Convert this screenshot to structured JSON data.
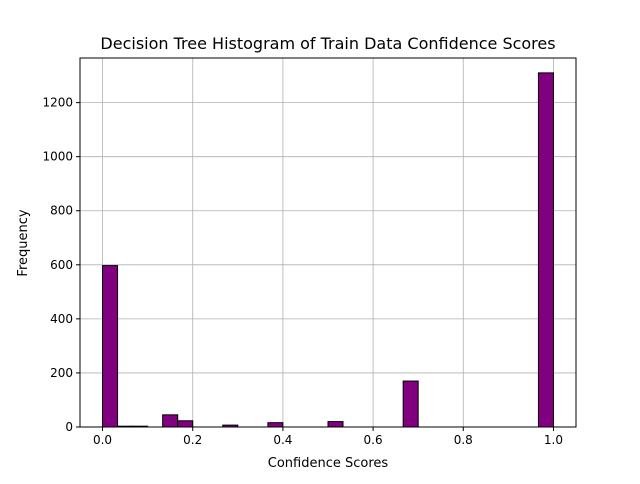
{
  "chart_data": {
    "type": "bar",
    "title": "Decision Tree Histogram of Train Data Confidence Scores",
    "xlabel": "Confidence Scores",
    "ylabel": "Frequency",
    "xlim": [
      -0.05,
      1.05
    ],
    "ylim": [
      0,
      1365
    ],
    "xticks": [
      0.0,
      0.2,
      0.4,
      0.6,
      0.8,
      1.0
    ],
    "xtick_labels": [
      "0.0",
      "0.2",
      "0.4",
      "0.6",
      "0.8",
      "1.0"
    ],
    "yticks": [
      0,
      200,
      400,
      600,
      800,
      1000,
      1200
    ],
    "ytick_labels": [
      "0",
      "200",
      "400",
      "600",
      "800",
      "1000",
      "1200"
    ],
    "grid": true,
    "bar_color": "#800080",
    "edge_color": "#000000",
    "grid_color": "#b0b0b0",
    "bin_edges": [
      0.0,
      0.0333,
      0.0667,
      0.1,
      0.1333,
      0.1667,
      0.2,
      0.2333,
      0.2667,
      0.3,
      0.3333,
      0.3667,
      0.4,
      0.4333,
      0.4667,
      0.5,
      0.5333,
      0.5667,
      0.6,
      0.6333,
      0.6667,
      0.7,
      0.7333,
      0.7667,
      0.8,
      0.8333,
      0.8667,
      0.9,
      0.9333,
      0.9667,
      1.0
    ],
    "values": [
      597,
      3,
      3,
      0,
      45,
      23,
      0,
      0,
      7,
      0,
      0,
      16,
      0,
      0,
      0,
      20,
      0,
      0,
      0,
      0,
      170,
      0,
      0,
      0,
      0,
      0,
      0,
      0,
      0,
      1310
    ]
  }
}
